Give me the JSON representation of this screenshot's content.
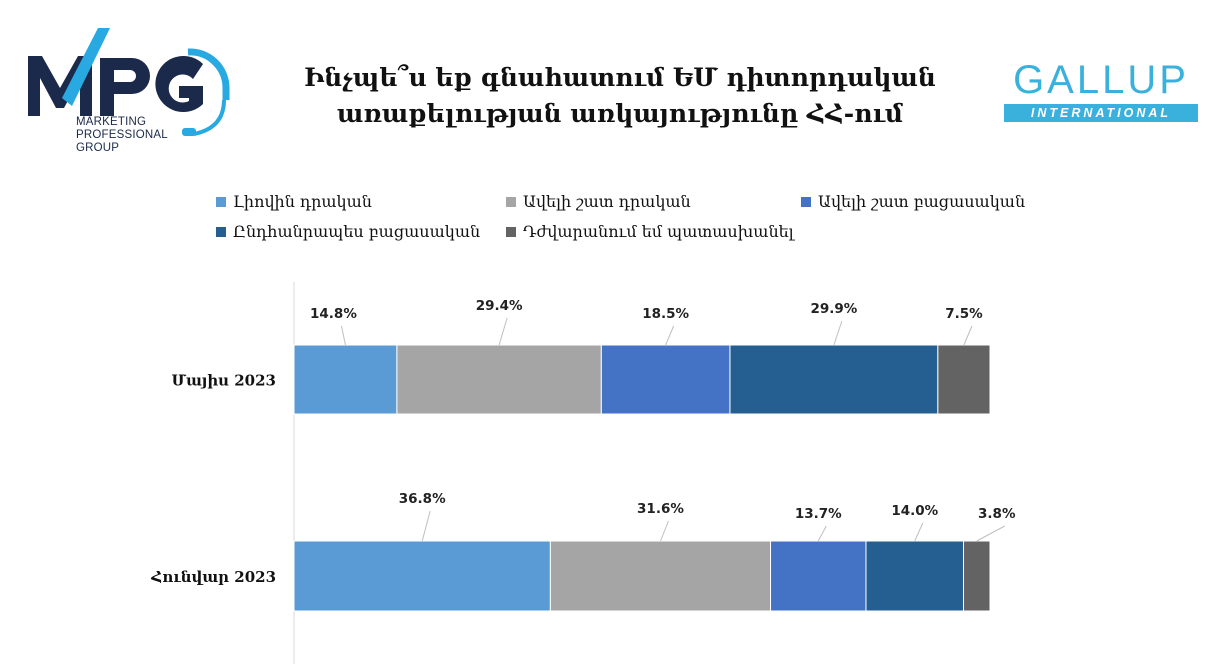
{
  "logos": {
    "mpg": {
      "mark": "MPG",
      "lines": [
        "MARKETING",
        "PROFESSIONAL",
        "GROUP"
      ]
    },
    "gallup": {
      "word": "GALLUP",
      "band": "INTERNATIONAL"
    }
  },
  "colors": {
    "series": [
      "#5b9bd5",
      "#a5a5a5",
      "#4472c4",
      "#255e91",
      "#636363"
    ],
    "mpg_dark": "#1b2a4a",
    "mpg_accent": "#29a9e1",
    "gallup": "#3ab0dc"
  },
  "chart_data": {
    "type": "bar",
    "orientation": "horizontal-stacked",
    "title": "Ինչպե՞ս եք գնահատում ԵՄ դիտորդական առաքելության առկայությունը ՀՀ-ում",
    "title_lines": [
      "Ինչպե՞ս եք գնահատում ԵՄ դիտորդական",
      "առաքելության առկայությունը ՀՀ-ում"
    ],
    "categories": [
      "Մայիս 2023",
      "Հունվար 2023"
    ],
    "series": [
      {
        "name": "Լիովին դրական",
        "values": [
          14.8,
          36.8
        ]
      },
      {
        "name": "Ավելի շատ դրական",
        "values": [
          29.4,
          31.6
        ]
      },
      {
        "name": "Ավելի շատ բացասական",
        "values": [
          18.5,
          13.7
        ]
      },
      {
        "name": "Ընդհանրապես բացասական",
        "values": [
          29.9,
          14.0
        ]
      },
      {
        "name": "Դժվարանում եմ պատասխանել",
        "values": [
          7.5,
          3.8
        ]
      }
    ],
    "value_suffix": "%",
    "xlim": [
      0,
      100
    ],
    "legend_position": "top",
    "grid": false
  }
}
